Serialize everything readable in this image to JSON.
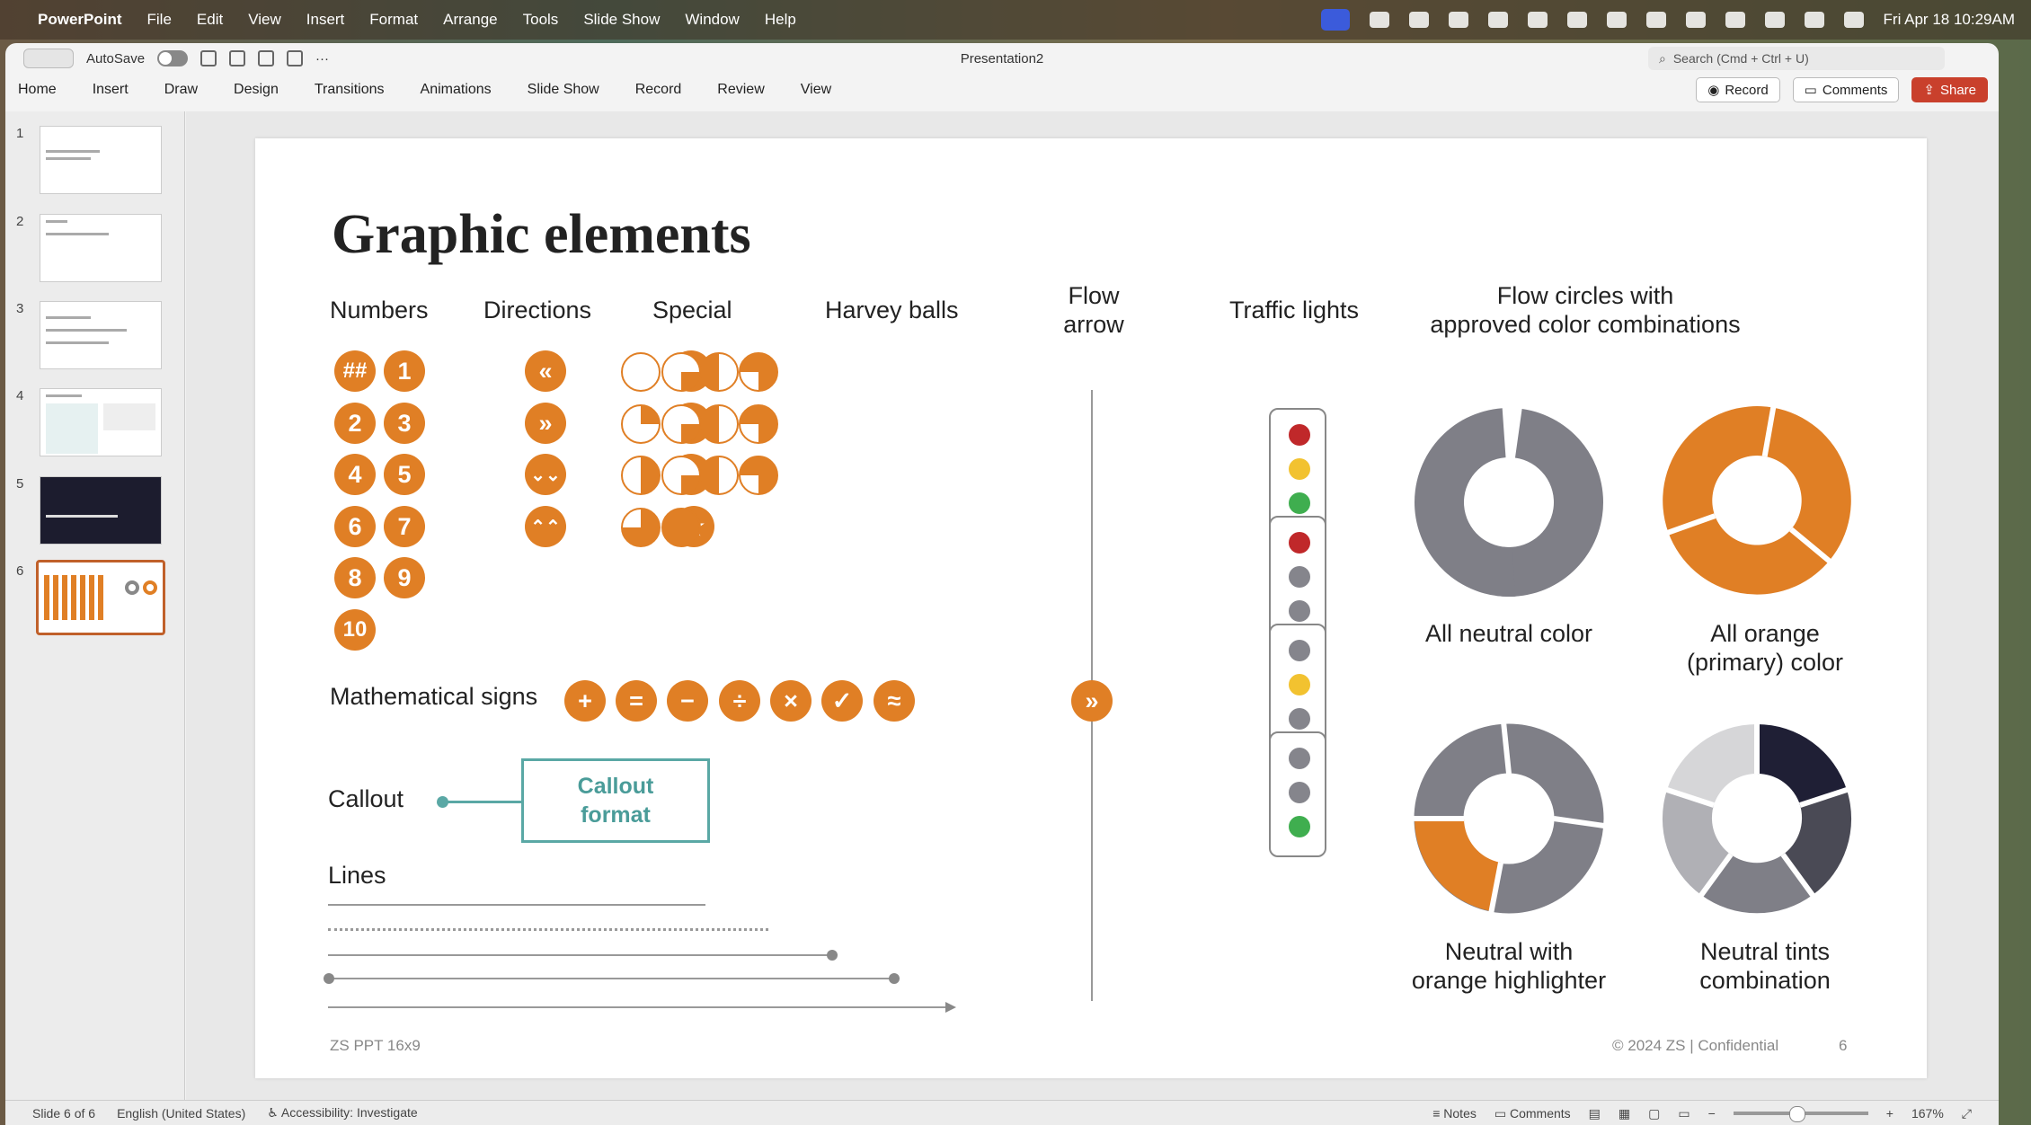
{
  "menubar": {
    "app": "PowerPoint",
    "items": [
      "File",
      "Edit",
      "View",
      "Insert",
      "Format",
      "Arrange",
      "Tools",
      "Slide Show",
      "Window",
      "Help"
    ],
    "clock": "Fri Apr 18  10:29AM"
  },
  "titlebar": {
    "autosave": "AutoSave",
    "doc_title": "Presentation2",
    "search_placeholder": "Search (Cmd + Ctrl + U)"
  },
  "ribbon": {
    "tabs": [
      "Home",
      "Insert",
      "Draw",
      "Design",
      "Transitions",
      "Animations",
      "Slide Show",
      "Record",
      "Review",
      "View"
    ],
    "record": "Record",
    "comments": "Comments",
    "share": "Share"
  },
  "slides_panel": {
    "numbers": [
      "1",
      "2",
      "3",
      "4",
      "5",
      "6"
    ],
    "selected": 6
  },
  "slide": {
    "title": "Graphic elements",
    "headings": {
      "numbers": "Numbers",
      "directions": "Directions",
      "special": "Special",
      "harvey": "Harvey balls",
      "flow_arrow_1": "Flow",
      "flow_arrow_2": "arrow",
      "traffic": "Traffic lights",
      "flow_circles_1": "Flow circles with",
      "flow_circles_2": "approved color combinations",
      "math": "Mathematical signs",
      "callout": "Callout",
      "lines": "Lines"
    },
    "numbers": [
      "##",
      "1",
      "2",
      "3",
      "4",
      "5",
      "6",
      "7",
      "8",
      "9",
      "10"
    ],
    "directions": [
      "«",
      "»",
      "⌄⌄",
      "⌃⌃"
    ],
    "special": [
      "❝",
      "?",
      "!",
      "☆"
    ],
    "math_signs": [
      "+",
      "=",
      "−",
      "÷",
      "×",
      "✓",
      "≈"
    ],
    "flow_arrow_symbol": "»",
    "harvey_fractions": [
      0,
      0.25,
      0.5,
      0.75,
      0.25,
      0.25,
      0.5,
      0.75,
      0.5,
      0.25,
      0.5,
      0.75,
      0.75,
      1
    ],
    "traffic_lights": [
      [
        "red",
        "yellow",
        "green"
      ],
      [
        "red",
        "gray",
        "gray"
      ],
      [
        "gray",
        "yellow",
        "gray"
      ],
      [
        "gray",
        "gray",
        "green"
      ]
    ],
    "colors": {
      "orange": "#e07f25",
      "neutral": "#7f7f87",
      "dark": "#1f1f35",
      "red": "#c0282a",
      "yellow": "#f2c230",
      "green": "#3fae4f",
      "gray": "#85858c",
      "teal": "#5aa8a5"
    },
    "callout_text_1": "Callout",
    "callout_text_2": "format",
    "circle_labels": {
      "c1": "All neutral color",
      "c2a": "All orange",
      "c2b": "(primary) color",
      "c3a": "Neutral with",
      "c3b": "orange highlighter",
      "c4a": "Neutral tints",
      "c4b": "combination"
    },
    "footer_left": "ZS PPT 16x9",
    "footer_right": "© 2024 ZS | Confidential",
    "page_number": "6"
  },
  "statusbar": {
    "slide": "Slide 6 of 6",
    "language": "English (United States)",
    "accessibility": "Accessibility: Investigate",
    "notes": "Notes",
    "comments": "Comments",
    "zoom": "167%"
  }
}
